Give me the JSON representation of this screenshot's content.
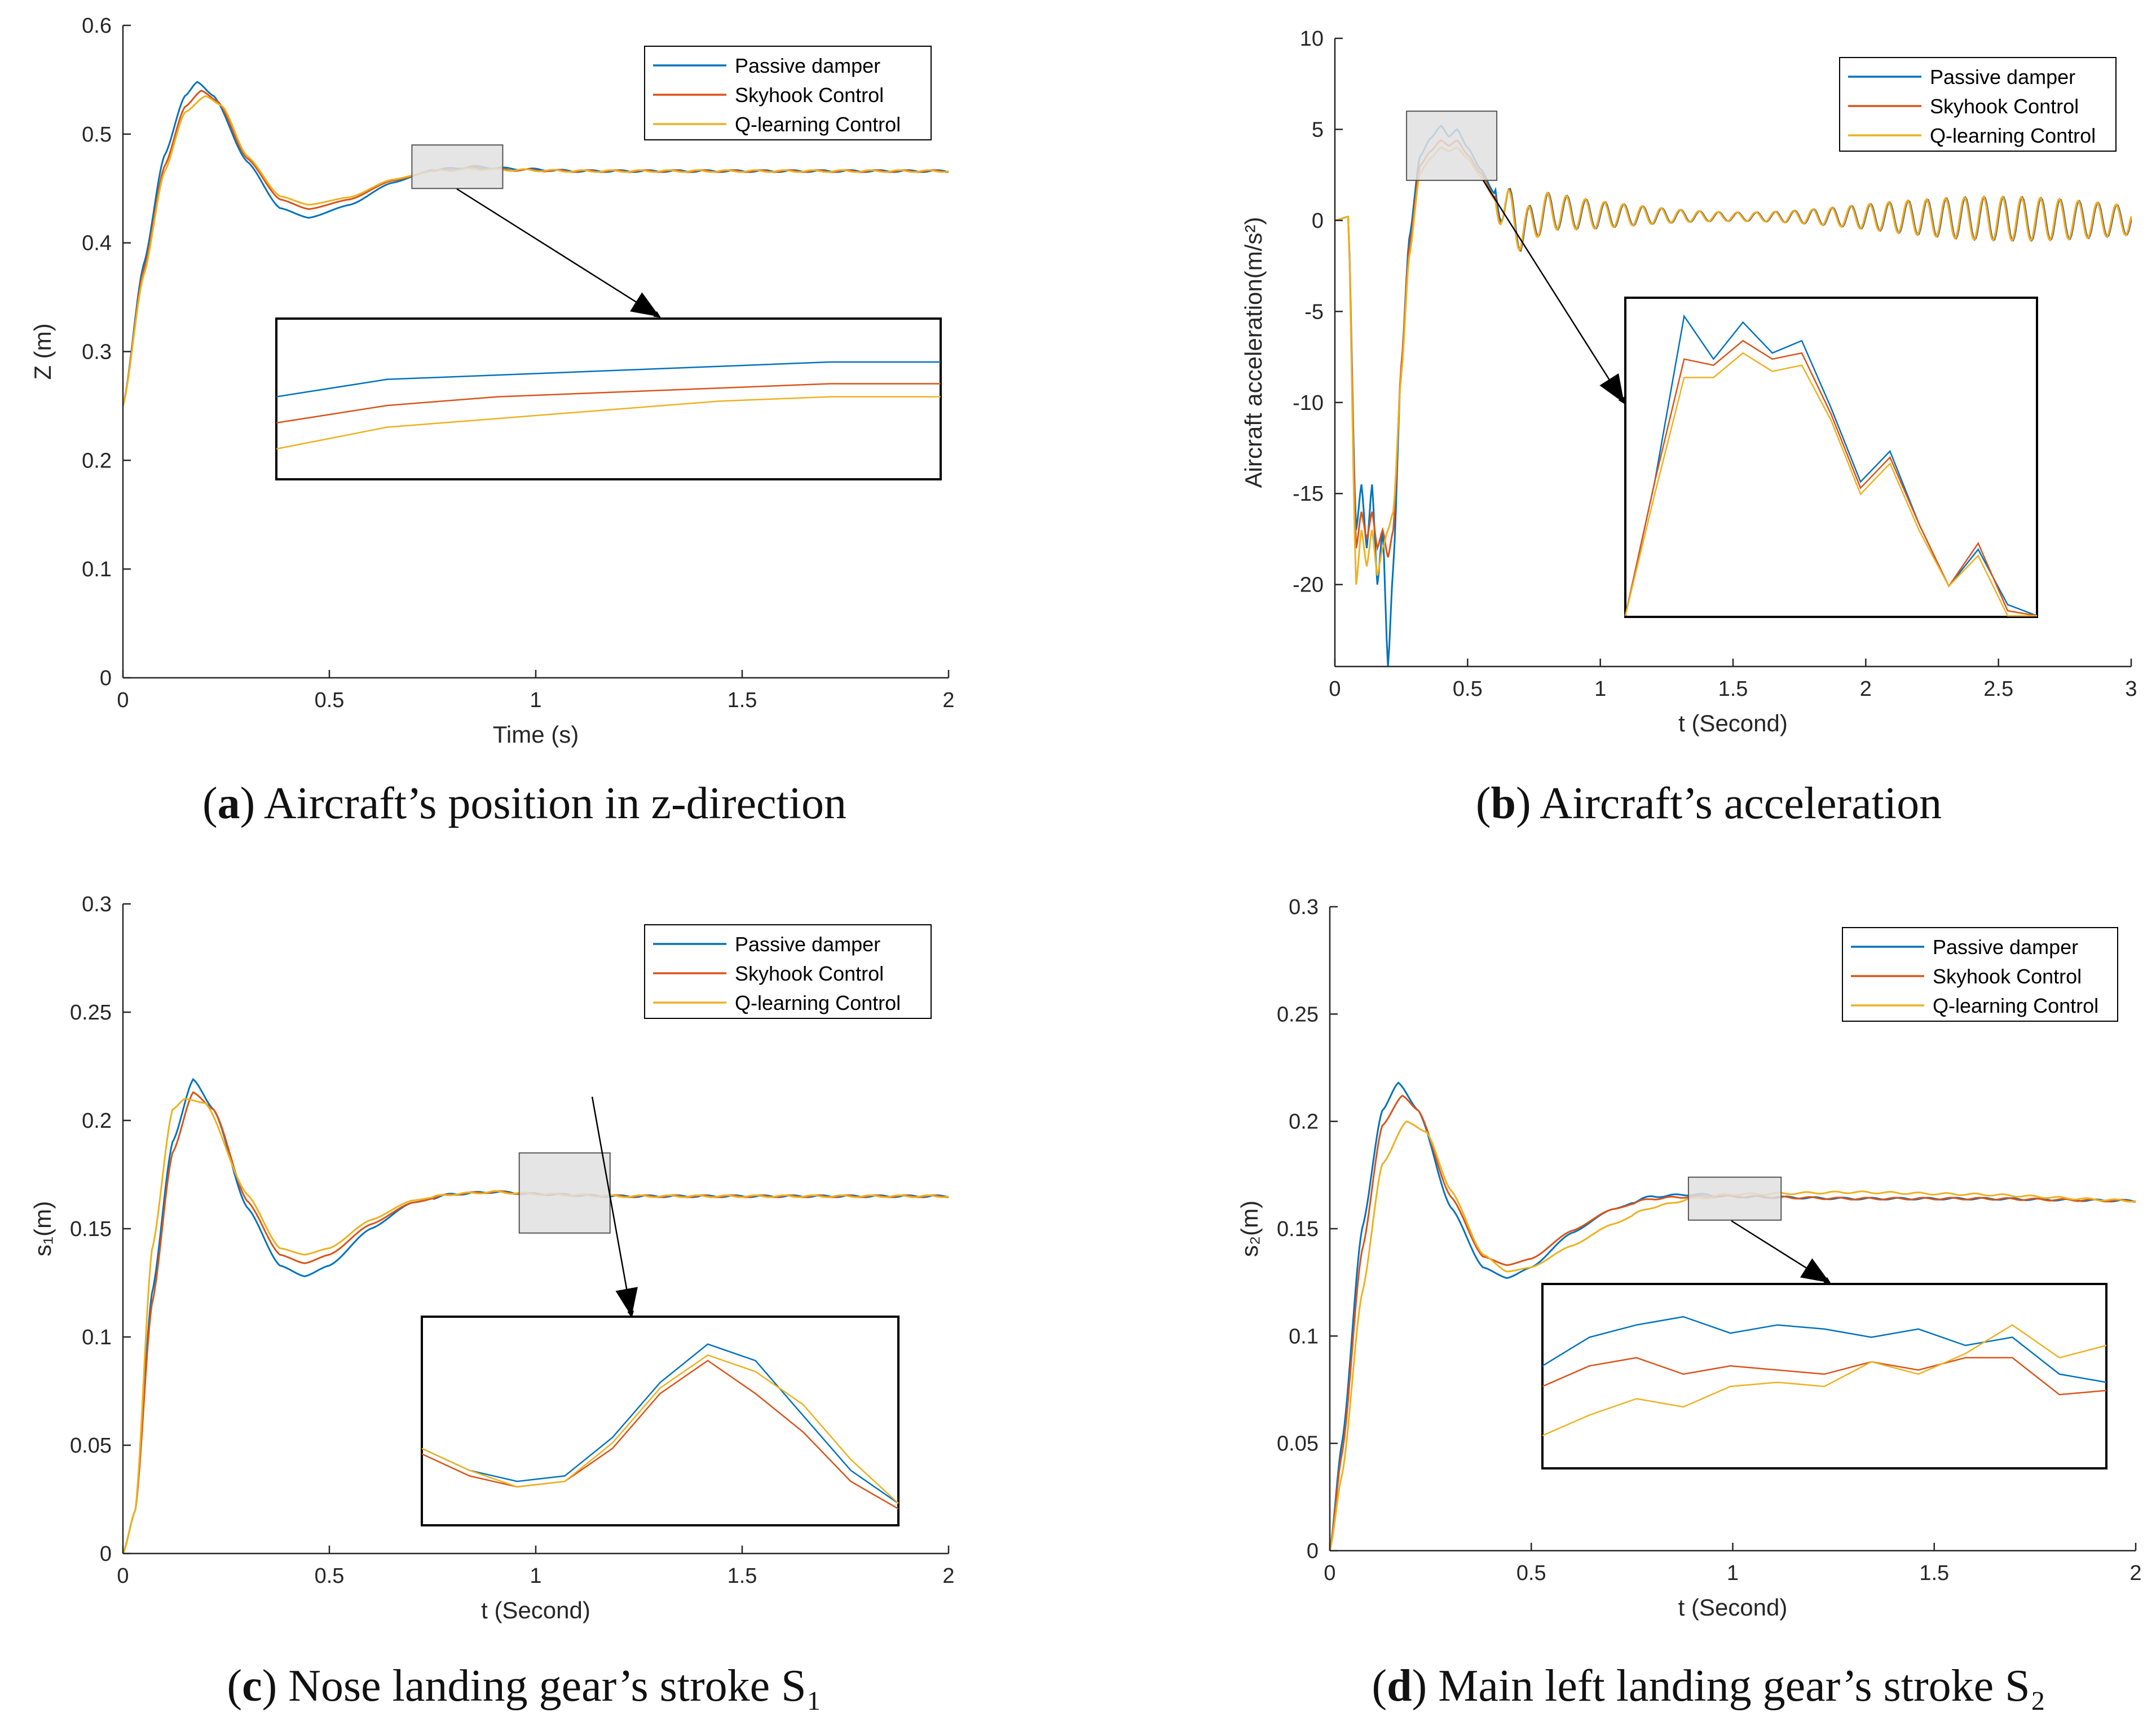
{
  "colors": {
    "passive": "#0072BD",
    "skyhook": "#D95319",
    "qlearning": "#EDB120",
    "axis": "#262626",
    "zoom_box": "#e0e0e0"
  },
  "captions": [
    {
      "letter": "a",
      "text": ") Aircraft’s position in z-direction"
    },
    {
      "letter": "b",
      "text": ") Aircraft’s acceleration"
    },
    {
      "letter": "c",
      "text": ") Nose landing gear’s stroke S₁"
    },
    {
      "letter": "d",
      "text": ") Main left landing gear’s stroke S₂"
    }
  ],
  "chart_data": [
    {
      "id": "a",
      "type": "line",
      "xlabel": "Time (s)",
      "ylabel": "Z (m)",
      "xlim": [
        0,
        2
      ],
      "ylim": [
        0,
        0.6
      ],
      "xticks": [
        0,
        0.5,
        1,
        1.5,
        2
      ],
      "xtick_labels": [
        "0",
        "0.5",
        "1",
        "1.5",
        "2"
      ],
      "yticks": [
        0,
        0.1,
        0.2,
        0.3,
        0.4,
        0.5,
        0.6
      ],
      "ytick_labels": [
        "0",
        "0.1",
        "0.2",
        "0.3",
        "0.4",
        "0.5",
        "0.6"
      ],
      "legend": {
        "position": "top-right",
        "entries": [
          "Passive damper",
          "Skyhook Control",
          "Q-learning Control"
        ]
      },
      "series": [
        {
          "name": "Passive damper",
          "x": [
            0,
            0.05,
            0.1,
            0.15,
            0.18,
            0.22,
            0.3,
            0.38,
            0.45,
            0.55,
            0.65,
            0.75,
            0.85,
            0.95,
            1.1,
            1.3,
            1.6,
            2.0
          ],
          "y": [
            0.25,
            0.38,
            0.48,
            0.535,
            0.548,
            0.535,
            0.475,
            0.432,
            0.423,
            0.435,
            0.455,
            0.467,
            0.47,
            0.468,
            0.466,
            0.466,
            0.466,
            0.466
          ]
        },
        {
          "name": "Skyhook Control",
          "x": [
            0,
            0.05,
            0.1,
            0.15,
            0.19,
            0.23,
            0.3,
            0.38,
            0.45,
            0.55,
            0.65,
            0.75,
            0.85,
            0.95,
            1.1,
            1.3,
            1.6,
            2.0
          ],
          "y": [
            0.25,
            0.375,
            0.47,
            0.525,
            0.54,
            0.53,
            0.478,
            0.44,
            0.431,
            0.44,
            0.457,
            0.466,
            0.469,
            0.467,
            0.466,
            0.466,
            0.466,
            0.466
          ]
        },
        {
          "name": "Q-learning Control",
          "x": [
            0,
            0.05,
            0.1,
            0.15,
            0.2,
            0.24,
            0.3,
            0.38,
            0.45,
            0.55,
            0.65,
            0.75,
            0.85,
            0.95,
            1.1,
            1.3,
            1.6,
            2.0
          ],
          "y": [
            0.25,
            0.37,
            0.465,
            0.52,
            0.535,
            0.526,
            0.48,
            0.443,
            0.435,
            0.442,
            0.458,
            0.466,
            0.468,
            0.467,
            0.466,
            0.466,
            0.466,
            0.466
          ]
        }
      ],
      "zoom": {
        "source_x": [
          0.7,
          0.92
        ],
        "source_y": [
          0.45,
          0.49
        ],
        "series": [
          {
            "name": "Passive damper",
            "y": [
              0.4694,
              0.4698,
              0.4699,
              0.47,
              0.4701,
              0.4702,
              0.4702
            ]
          },
          {
            "name": "Skyhook Control",
            "y": [
              0.4688,
              0.4692,
              0.4694,
              0.4695,
              0.4696,
              0.4697,
              0.4697
            ]
          },
          {
            "name": "Q-learning Control",
            "y": [
              0.4682,
              0.4687,
              0.4689,
              0.4691,
              0.4693,
              0.4694,
              0.4694
            ]
          }
        ],
        "range": [
          0.4675,
          0.4712
        ]
      }
    },
    {
      "id": "b",
      "type": "line",
      "xlabel": "t (Second)",
      "ylabel": "Aircraft acceleration(m/s²)",
      "xlim": [
        0,
        3
      ],
      "ylim": [
        -24.5,
        10
      ],
      "xticks": [
        0,
        0.5,
        1,
        1.5,
        2,
        2.5,
        3
      ],
      "xtick_labels": [
        "0",
        "0.5",
        "1",
        "1.5",
        "2",
        "2.5",
        "3"
      ],
      "yticks": [
        -20,
        -15,
        -10,
        -5,
        0,
        5,
        10
      ],
      "ytick_labels": [
        "-20",
        "-15",
        "-10",
        "-5",
        "0",
        "5",
        "10"
      ],
      "legend": {
        "position": "top-right",
        "entries": [
          "Passive damper",
          "Skyhook Control",
          "Q-learning Control"
        ]
      },
      "series": [
        {
          "name": "Passive damper",
          "x": [
            0,
            0.05,
            0.08,
            0.1,
            0.12,
            0.14,
            0.16,
            0.18,
            0.2,
            0.22,
            0.25,
            0.28,
            0.32,
            0.36,
            0.4,
            0.43,
            0.46,
            0.5,
            0.55,
            0.6,
            0.65,
            0.7,
            0.8,
            1.0,
            1.5,
            2.0,
            2.5,
            3.0
          ],
          "y": [
            0,
            0.2,
            -17,
            -14.5,
            -18,
            -14.5,
            -20,
            -17,
            -24.5,
            -19,
            -8,
            -1,
            3.5,
            4.5,
            5.2,
            4.6,
            5.0,
            4.0,
            2.8,
            1.5,
            0.8,
            -0.6,
            0.5,
            0.3,
            0.2,
            0.2,
            0.1,
            0
          ]
        },
        {
          "name": "Skyhook Control",
          "x": [
            0,
            0.05,
            0.08,
            0.1,
            0.12,
            0.14,
            0.16,
            0.18,
            0.2,
            0.22,
            0.25,
            0.28,
            0.32,
            0.36,
            0.4,
            0.43,
            0.46,
            0.5,
            0.55,
            0.6,
            0.65,
            0.7,
            0.8,
            1.0,
            1.5,
            2.0,
            2.5,
            3.0
          ],
          "y": [
            0,
            0.2,
            -18,
            -16,
            -17.5,
            -16,
            -18,
            -17,
            -18.5,
            -17,
            -8,
            -1.5,
            3.0,
            3.8,
            4.4,
            4.1,
            4.4,
            3.6,
            2.6,
            1.3,
            0.7,
            -0.6,
            0.5,
            0.3,
            0.2,
            0.2,
            0.1,
            0
          ]
        },
        {
          "name": "Q-learning Control",
          "x": [
            0,
            0.05,
            0.08,
            0.1,
            0.12,
            0.14,
            0.16,
            0.18,
            0.2,
            0.22,
            0.25,
            0.28,
            0.32,
            0.36,
            0.4,
            0.43,
            0.46,
            0.5,
            0.55,
            0.6,
            0.65,
            0.7,
            0.8,
            1.0,
            1.5,
            2.0,
            2.5,
            3.0
          ],
          "y": [
            0,
            0.2,
            -20,
            -17,
            -19,
            -17,
            -19.5,
            -18,
            -17,
            -16,
            -8.5,
            -2,
            2.6,
            3.4,
            4.0,
            3.8,
            4.0,
            3.4,
            2.4,
            1.2,
            0.6,
            -0.6,
            0.5,
            0.3,
            0.2,
            0.2,
            0.1,
            0
          ]
        }
      ],
      "oscillation": {
        "start": 0.6,
        "amplitude": 1.2,
        "freq": 28
      },
      "zoom": {
        "source_x": [
          0.27,
          0.61
        ],
        "source_y": [
          2.2,
          6.0
        ],
        "series": [
          {
            "name": "Passive damper",
            "y": [
              -1,
              2.5,
              5.2,
              4.5,
              5.1,
              4.6,
              4.8,
              3.7,
              2.5,
              3.0,
              1.8,
              0.8,
              1.4,
              0.5,
              -1
            ]
          },
          {
            "name": "Skyhook Control",
            "y": [
              -1,
              2.5,
              4.5,
              4.4,
              4.8,
              4.5,
              4.6,
              3.6,
              2.4,
              2.9,
              1.8,
              0.8,
              1.5,
              0.4,
              -1
            ]
          },
          {
            "name": "Q-learning Control",
            "y": [
              -1,
              2.3,
              4.2,
              4.2,
              4.6,
              4.3,
              4.4,
              3.5,
              2.3,
              2.8,
              1.7,
              0.8,
              1.3,
              0.3,
              -1
            ]
          }
        ],
        "range": [
          0.3,
          5.5
        ]
      }
    },
    {
      "id": "c",
      "type": "line",
      "xlabel": "t (Second)",
      "ylabel": "s₁(m)",
      "xlim": [
        0,
        2
      ],
      "ylim": [
        0,
        0.3
      ],
      "xticks": [
        0,
        0.5,
        1,
        1.5,
        2
      ],
      "xtick_labels": [
        "0",
        "0.5",
        "1",
        "1.5",
        "2"
      ],
      "yticks": [
        0,
        0.05,
        0.1,
        0.15,
        0.2,
        0.25,
        0.3
      ],
      "ytick_labels": [
        "0",
        "0.05",
        "0.1",
        "0.15",
        "0.2",
        "0.25",
        "0.3"
      ],
      "legend": {
        "position": "top-right",
        "entries": [
          "Passive damper",
          "Skyhook Control",
          "Q-learning Control"
        ]
      },
      "series": [
        {
          "name": "Passive damper",
          "x": [
            0,
            0.03,
            0.07,
            0.12,
            0.17,
            0.22,
            0.3,
            0.38,
            0.44,
            0.5,
            0.6,
            0.7,
            0.8,
            0.9,
            1.0,
            1.2,
            1.5,
            2.0
          ],
          "y": [
            0,
            0.02,
            0.12,
            0.19,
            0.219,
            0.205,
            0.16,
            0.133,
            0.128,
            0.133,
            0.15,
            0.162,
            0.166,
            0.167,
            0.166,
            0.165,
            0.165,
            0.165
          ]
        },
        {
          "name": "Skyhook Control",
          "x": [
            0,
            0.03,
            0.07,
            0.12,
            0.17,
            0.22,
            0.3,
            0.38,
            0.44,
            0.5,
            0.6,
            0.7,
            0.8,
            0.9,
            1.0,
            1.2,
            1.5,
            2.0
          ],
          "y": [
            0,
            0.02,
            0.115,
            0.185,
            0.213,
            0.205,
            0.163,
            0.138,
            0.134,
            0.138,
            0.152,
            0.162,
            0.166,
            0.167,
            0.166,
            0.165,
            0.165,
            0.165
          ]
        },
        {
          "name": "Q-learning Control",
          "x": [
            0,
            0.03,
            0.07,
            0.12,
            0.15,
            0.2,
            0.3,
            0.38,
            0.44,
            0.5,
            0.6,
            0.7,
            0.8,
            0.9,
            1.0,
            1.2,
            1.5,
            2.0
          ],
          "y": [
            0,
            0.02,
            0.14,
            0.205,
            0.21,
            0.208,
            0.166,
            0.141,
            0.138,
            0.141,
            0.154,
            0.163,
            0.166,
            0.167,
            0.166,
            0.165,
            0.165,
            0.165
          ]
        }
      ],
      "zoom": {
        "source_x": [
          0.96,
          1.18
        ],
        "source_y": [
          0.148,
          0.185
        ],
        "series": [
          {
            "name": "Passive damper",
            "y": [
              0.1656,
              0.1652,
              0.165,
              0.1651,
              0.1658,
              0.1668,
              0.1675,
              0.1672,
              0.1662,
              0.1652,
              0.1646
            ]
          },
          {
            "name": "Skyhook Control",
            "y": [
              0.1655,
              0.1651,
              0.1649,
              0.165,
              0.1656,
              0.1666,
              0.1672,
              0.1666,
              0.1659,
              0.165,
              0.1645
            ]
          },
          {
            "name": "Q-learning Control",
            "y": [
              0.1656,
              0.1652,
              0.1649,
              0.165,
              0.1657,
              0.1667,
              0.1673,
              0.167,
              0.1664,
              0.1654,
              0.1646
            ]
          }
        ],
        "range": [
          0.1642,
          0.168
        ]
      }
    },
    {
      "id": "d",
      "type": "line",
      "xlabel": "t (Second)",
      "ylabel": "s₂(m)",
      "xlim": [
        0,
        2
      ],
      "ylim": [
        0,
        0.3
      ],
      "xticks": [
        0,
        0.5,
        1,
        1.5,
        2
      ],
      "xtick_labels": [
        "0",
        "0.5",
        "1",
        "1.5",
        "2"
      ],
      "yticks": [
        0,
        0.05,
        0.1,
        0.15,
        0.2,
        0.25,
        0.3
      ],
      "ytick_labels": [
        "0",
        "0.05",
        "0.1",
        "0.15",
        "0.2",
        "0.25",
        "0.3"
      ],
      "legend": {
        "position": "top-right",
        "entries": [
          "Passive damper",
          "Skyhook Control",
          "Q-learning Control"
        ]
      },
      "series": [
        {
          "name": "Passive damper",
          "x": [
            0,
            0.03,
            0.08,
            0.13,
            0.17,
            0.22,
            0.3,
            0.38,
            0.44,
            0.5,
            0.6,
            0.7,
            0.8,
            0.9,
            1.0,
            1.3,
            1.6,
            2.0
          ],
          "y": [
            0,
            0.05,
            0.15,
            0.205,
            0.218,
            0.205,
            0.16,
            0.132,
            0.127,
            0.132,
            0.148,
            0.159,
            0.165,
            0.166,
            0.165,
            0.164,
            0.164,
            0.163
          ]
        },
        {
          "name": "Skyhook Control",
          "x": [
            0,
            0.03,
            0.08,
            0.13,
            0.18,
            0.22,
            0.3,
            0.38,
            0.44,
            0.5,
            0.6,
            0.7,
            0.8,
            0.9,
            1.0,
            1.3,
            1.6,
            2.0
          ],
          "y": [
            0,
            0.045,
            0.14,
            0.198,
            0.212,
            0.205,
            0.165,
            0.137,
            0.133,
            0.136,
            0.149,
            0.159,
            0.164,
            0.165,
            0.165,
            0.164,
            0.164,
            0.163
          ]
        },
        {
          "name": "Q-learning Control",
          "x": [
            0,
            0.03,
            0.08,
            0.13,
            0.19,
            0.24,
            0.3,
            0.38,
            0.44,
            0.5,
            0.6,
            0.7,
            0.8,
            0.9,
            1.0,
            1.3,
            1.6,
            2.0
          ],
          "y": [
            0,
            0.035,
            0.12,
            0.18,
            0.2,
            0.195,
            0.168,
            0.138,
            0.13,
            0.132,
            0.142,
            0.152,
            0.16,
            0.164,
            0.166,
            0.167,
            0.166,
            0.163
          ]
        }
      ],
      "zoom": {
        "source_x": [
          0.89,
          1.12
        ],
        "source_y": [
          0.154,
          0.174
        ],
        "series": [
          {
            "name": "Passive damper",
            "y": [
              0.165,
              0.1657,
              0.166,
              0.1662,
              0.1658,
              0.166,
              0.1659,
              0.1657,
              0.1659,
              0.1655,
              0.1657,
              0.1648,
              0.1646
            ]
          },
          {
            "name": "Skyhook Control",
            "y": [
              0.1645,
              0.165,
              0.1652,
              0.1648,
              0.165,
              0.1649,
              0.1648,
              0.1651,
              0.1649,
              0.1652,
              0.1652,
              0.1643,
              0.1644
            ]
          },
          {
            "name": "Q-learning Control",
            "y": [
              0.1633,
              0.1638,
              0.1642,
              0.164,
              0.1645,
              0.1646,
              0.1645,
              0.1651,
              0.1648,
              0.1653,
              0.166,
              0.1652,
              0.1655
            ]
          }
        ],
        "range": [
          0.1625,
          0.167
        ]
      }
    }
  ]
}
